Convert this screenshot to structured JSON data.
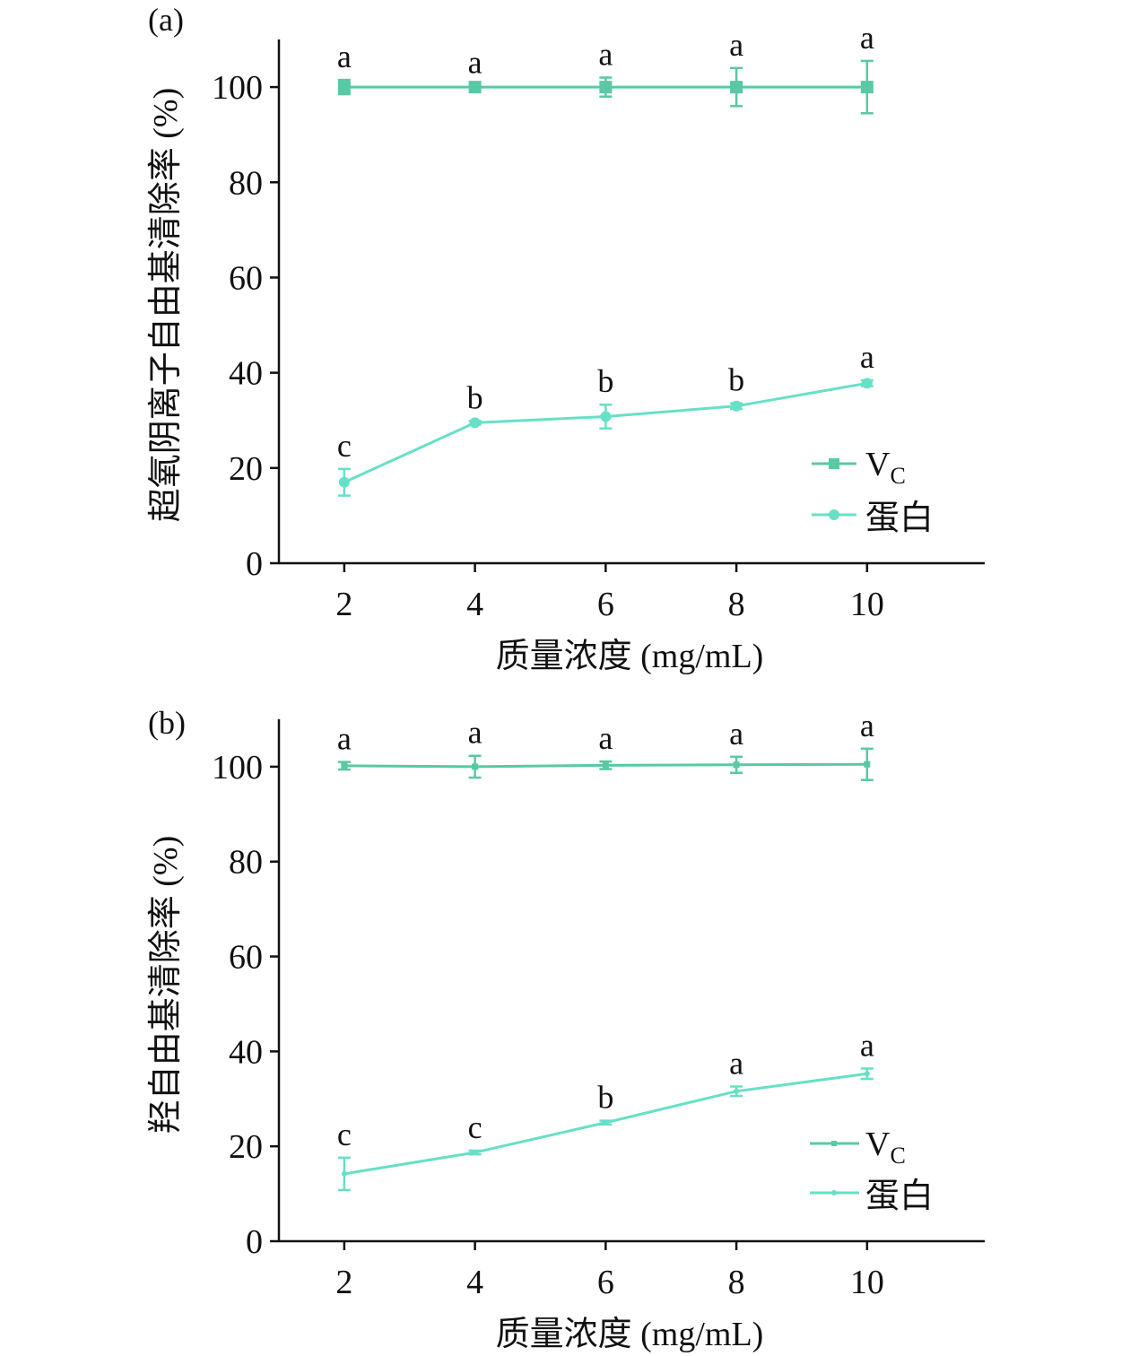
{
  "colors": {
    "vc": "#58c9a4",
    "protein": "#66e0c6",
    "axis": "#111111"
  },
  "chart_data": [
    {
      "type": "line",
      "panel_label": "(a)",
      "xlabel": "质量浓度 (mg/mL)",
      "ylabel": "超氧阴离子自由基清除率 (%)",
      "x": [
        2,
        4,
        6,
        8,
        10
      ],
      "x_ticks": [
        "2",
        "4",
        "6",
        "8",
        "10"
      ],
      "xlim": [
        1,
        11.8
      ],
      "ylim": [
        0,
        110
      ],
      "y_ticks": [
        "0",
        "20",
        "40",
        "60",
        "80",
        "100"
      ],
      "grid": false,
      "legend_position": "lower-right",
      "series": [
        {
          "name": "VC",
          "name_main": "V",
          "name_sub": "C",
          "marker": "square",
          "values": [
            100.0,
            100.0,
            100.0,
            100.0,
            100.0
          ],
          "errors": [
            1.5,
            0.3,
            2.0,
            4.0,
            5.5
          ],
          "labels": [
            "a",
            "a",
            "a",
            "a",
            "a"
          ]
        },
        {
          "name": "蛋白",
          "marker": "circle",
          "values": [
            17.0,
            29.5,
            30.8,
            33.0,
            37.8
          ],
          "errors": [
            2.8,
            0.4,
            2.5,
            0.6,
            0.6
          ],
          "labels": [
            "c",
            "b",
            "b",
            "b",
            "a"
          ]
        }
      ]
    },
    {
      "type": "line",
      "panel_label": "(b)",
      "xlabel": "质量浓度 (mg/mL)",
      "ylabel": "羟自由基清除率 (%)",
      "x": [
        2,
        4,
        6,
        8,
        10
      ],
      "x_ticks": [
        "2",
        "4",
        "6",
        "8",
        "10"
      ],
      "xlim": [
        1,
        11.8
      ],
      "ylim": [
        0,
        110
      ],
      "y_ticks": [
        "0",
        "20",
        "40",
        "60",
        "80",
        "100"
      ],
      "grid": false,
      "legend_position": "lower-right",
      "series": [
        {
          "name": "VC",
          "name_main": "V",
          "name_sub": "C",
          "marker": "small-square",
          "values": [
            100.2,
            100.0,
            100.3,
            100.4,
            100.5
          ],
          "errors": [
            0.8,
            2.3,
            0.8,
            1.7,
            3.3
          ],
          "labels": [
            "a",
            "a",
            "a",
            "a",
            "a"
          ]
        },
        {
          "name": "蛋白",
          "marker": "small-circle",
          "values": [
            14.2,
            18.7,
            25.0,
            31.6,
            35.3
          ],
          "errors": [
            3.4,
            0.4,
            0.4,
            1.0,
            1.1
          ],
          "labels": [
            "c",
            "c",
            "b",
            "a",
            "a"
          ]
        }
      ]
    }
  ]
}
